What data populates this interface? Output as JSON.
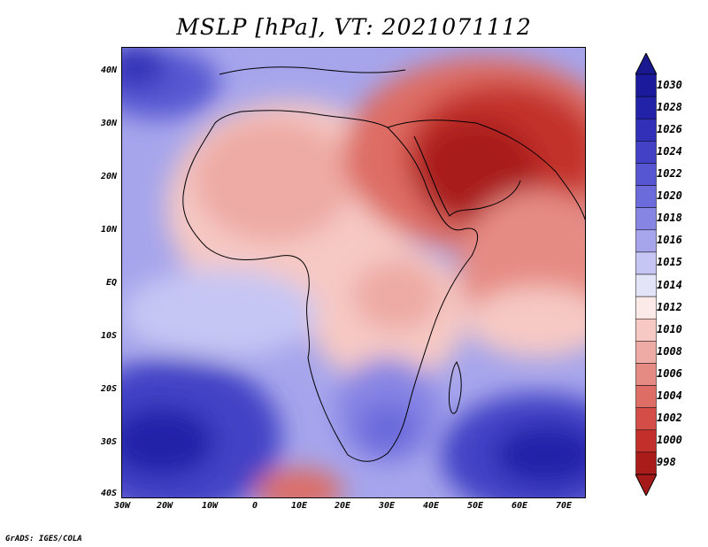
{
  "title": "MSLP [hPa], VT: 2021071112",
  "footer": "GrADS: IGES/COLA",
  "y_axis_labels": [
    "40N",
    "30N",
    "20N",
    "10N",
    "EQ",
    "10S",
    "20S",
    "30S",
    "40S"
  ],
  "x_axis_labels": [
    "30W",
    "20W",
    "10W",
    "0",
    "10E",
    "20E",
    "30E",
    "40E",
    "50E",
    "60E",
    "70E"
  ],
  "colorbar": {
    "levels": [
      "1030",
      "1028",
      "1026",
      "1024",
      "1022",
      "1020",
      "1018",
      "1016",
      "1015",
      "1014",
      "1012",
      "1010",
      "1008",
      "1006",
      "1004",
      "1002",
      "1000",
      "998"
    ],
    "colors": [
      "#1c1a9c",
      "#2222a9",
      "#3130b8",
      "#4342c6",
      "#5756d2",
      "#6c6bdc",
      "#8785e4",
      "#a6a5ec",
      "#c6c6f4",
      "#e4e4f8",
      "#fbeae8",
      "#f6c9c4",
      "#eeaaa4",
      "#e68b84",
      "#dd6d65",
      "#d44e47",
      "#c3302b",
      "#a91c1a"
    ],
    "top_color": "#1a1890",
    "bottom_color": "#a51a18"
  }
}
